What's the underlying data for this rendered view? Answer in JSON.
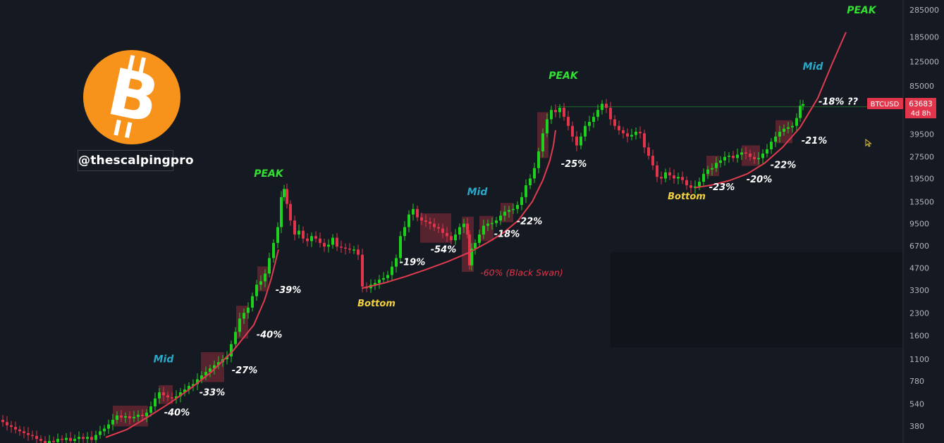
{
  "brand": {
    "handle": "@thescalpingpro",
    "logo_symbol": "bitcoin-logo",
    "logo_color": "#f7931a"
  },
  "colors": {
    "background": "#151921",
    "up": "#1ed11e",
    "down": "#e0354a",
    "zone": "#a8303d",
    "curve": "#e03b4f",
    "peak": "#33e033",
    "mid": "#2aa9c9",
    "bottom": "#f2d13d",
    "pct": "#ffffff",
    "black_swan": "#e0354a"
  },
  "chart_data": {
    "type": "line",
    "symbol": "BTCUSD",
    "title": "",
    "xlabel": "",
    "ylabel": "",
    "y_scale": "log",
    "grid": false,
    "y_ticks": [
      380,
      540,
      780,
      1100,
      1600,
      2300,
      3300,
      4700,
      6700,
      9500,
      13500,
      19500,
      27500,
      39500,
      55000,
      85000,
      125000,
      185000,
      285000
    ],
    "last_price": {
      "symbol": "BTCUSD",
      "value": "63683",
      "countdown": "4d 8h"
    },
    "series": [
      {
        "name": "",
        "points": [
          [
            0,
            420
          ],
          [
            6,
            405
          ],
          [
            12,
            385
          ],
          [
            18,
            375
          ],
          [
            24,
            360
          ],
          [
            30,
            350
          ],
          [
            36,
            340
          ],
          [
            42,
            330
          ],
          [
            48,
            325
          ],
          [
            54,
            310
          ],
          [
            60,
            300
          ],
          [
            66,
            290
          ],
          [
            72,
            300
          ],
          [
            78,
            295
          ],
          [
            84,
            310
          ],
          [
            90,
            305
          ],
          [
            96,
            315
          ],
          [
            102,
            300
          ],
          [
            108,
            310
          ],
          [
            114,
            320
          ],
          [
            120,
            310
          ],
          [
            126,
            320
          ],
          [
            132,
            305
          ],
          [
            138,
            330
          ],
          [
            144,
            350
          ],
          [
            150,
            365
          ],
          [
            156,
            390
          ],
          [
            162,
            420
          ],
          [
            168,
            450
          ],
          [
            174,
            435
          ],
          [
            180,
            445
          ],
          [
            186,
            430
          ],
          [
            192,
            440
          ],
          [
            198,
            455
          ],
          [
            204,
            445
          ],
          [
            210,
            470
          ],
          [
            216,
            520
          ],
          [
            222,
            590
          ],
          [
            228,
            650
          ],
          [
            234,
            620
          ],
          [
            240,
            600
          ],
          [
            246,
            590
          ],
          [
            252,
            610
          ],
          [
            258,
            650
          ],
          [
            264,
            680
          ],
          [
            270,
            720
          ],
          [
            276,
            740
          ],
          [
            282,
            800
          ],
          [
            288,
            850
          ],
          [
            294,
            900
          ],
          [
            300,
            950
          ],
          [
            306,
            1000
          ],
          [
            312,
            1050
          ],
          [
            318,
            1100
          ],
          [
            324,
            1150
          ],
          [
            330,
            1400
          ],
          [
            336,
            1700
          ],
          [
            342,
            2100
          ],
          [
            348,
            2300
          ],
          [
            354,
            2500
          ],
          [
            360,
            3000
          ],
          [
            366,
            3600
          ],
          [
            372,
            3800
          ],
          [
            378,
            4300
          ],
          [
            384,
            5500
          ],
          [
            390,
            7000
          ],
          [
            396,
            9000
          ],
          [
            400,
            14500
          ],
          [
            404,
            16500
          ],
          [
            408,
            13000
          ],
          [
            414,
            10000
          ],
          [
            420,
            8000
          ],
          [
            426,
            8500
          ],
          [
            432,
            7500
          ],
          [
            438,
            7200
          ],
          [
            444,
            7800
          ],
          [
            450,
            7500
          ],
          [
            456,
            7000
          ],
          [
            462,
            6600
          ],
          [
            468,
            6800
          ],
          [
            474,
            7600
          ],
          [
            480,
            6600
          ],
          [
            486,
            6500
          ],
          [
            492,
            6400
          ],
          [
            498,
            6300
          ],
          [
            504,
            6300
          ],
          [
            510,
            5800
          ],
          [
            516,
            3500
          ],
          [
            522,
            3400
          ],
          [
            528,
            3600
          ],
          [
            534,
            3700
          ],
          [
            540,
            3900
          ],
          [
            546,
            4000
          ],
          [
            552,
            4200
          ],
          [
            558,
            4800
          ],
          [
            564,
            5500
          ],
          [
            570,
            7800
          ],
          [
            576,
            9000
          ],
          [
            582,
            11000
          ],
          [
            588,
            12000
          ],
          [
            594,
            10500
          ],
          [
            600,
            10000
          ],
          [
            606,
            9800
          ],
          [
            612,
            9500
          ],
          [
            618,
            9000
          ],
          [
            624,
            8800
          ],
          [
            630,
            8200
          ],
          [
            636,
            7800
          ],
          [
            642,
            7300
          ],
          [
            648,
            8000
          ],
          [
            654,
            9000
          ],
          [
            660,
            9500
          ],
          [
            664,
            8000
          ],
          [
            666,
            4900
          ],
          [
            670,
            6400
          ],
          [
            676,
            7000
          ],
          [
            682,
            8000
          ],
          [
            688,
            9200
          ],
          [
            694,
            9500
          ],
          [
            700,
            9600
          ],
          [
            706,
            10000
          ],
          [
            712,
            10800
          ],
          [
            718,
            11500
          ],
          [
            724,
            11800
          ],
          [
            730,
            12000
          ],
          [
            736,
            12800
          ],
          [
            742,
            14500
          ],
          [
            748,
            17500
          ],
          [
            754,
            19500
          ],
          [
            760,
            23000
          ],
          [
            766,
            30000
          ],
          [
            772,
            40000
          ],
          [
            778,
            50000
          ],
          [
            784,
            58000
          ],
          [
            790,
            56000
          ],
          [
            796,
            60000
          ],
          [
            802,
            52000
          ],
          [
            808,
            45000
          ],
          [
            814,
            38000
          ],
          [
            820,
            33000
          ],
          [
            826,
            38000
          ],
          [
            832,
            45000
          ],
          [
            838,
            48000
          ],
          [
            844,
            52000
          ],
          [
            850,
            58000
          ],
          [
            856,
            64000
          ],
          [
            862,
            60000
          ],
          [
            868,
            50000
          ],
          [
            874,
            45000
          ],
          [
            880,
            42000
          ],
          [
            886,
            40000
          ],
          [
            892,
            38000
          ],
          [
            898,
            39000
          ],
          [
            904,
            41000
          ],
          [
            910,
            40000
          ],
          [
            916,
            32000
          ],
          [
            922,
            28000
          ],
          [
            928,
            24000
          ],
          [
            934,
            20000
          ],
          [
            940,
            19500
          ],
          [
            946,
            21500
          ],
          [
            952,
            20500
          ],
          [
            958,
            19500
          ],
          [
            964,
            20000
          ],
          [
            970,
            19000
          ],
          [
            976,
            17500
          ],
          [
            982,
            16800
          ],
          [
            988,
            17200
          ],
          [
            994,
            18500
          ],
          [
            1000,
            21000
          ],
          [
            1006,
            22500
          ],
          [
            1012,
            23000
          ],
          [
            1018,
            25000
          ],
          [
            1024,
            26000
          ],
          [
            1030,
            27500
          ],
          [
            1036,
            28000
          ],
          [
            1042,
            27000
          ],
          [
            1048,
            28500
          ],
          [
            1054,
            29500
          ],
          [
            1060,
            29000
          ],
          [
            1066,
            27500
          ],
          [
            1072,
            26500
          ],
          [
            1078,
            27000
          ],
          [
            1084,
            29000
          ],
          [
            1090,
            31000
          ],
          [
            1096,
            35000
          ],
          [
            1102,
            38000
          ],
          [
            1108,
            41000
          ],
          [
            1114,
            43000
          ],
          [
            1120,
            44000
          ],
          [
            1126,
            45000
          ],
          [
            1132,
            51000
          ],
          [
            1136,
            62000
          ],
          [
            1140,
            63683
          ]
        ]
      }
    ],
    "trend_curves": [
      {
        "points": [
          [
            150,
            318
          ],
          [
            180,
            360
          ],
          [
            210,
            440
          ],
          [
            240,
            545
          ],
          [
            270,
            690
          ],
          [
            300,
            900
          ],
          [
            330,
            1250
          ],
          [
            360,
            1900
          ],
          [
            375,
            2800
          ],
          [
            385,
            4000
          ],
          [
            395,
            6300
          ]
        ]
      },
      {
        "points": [
          [
            513,
            3400
          ],
          [
            545,
            3700
          ],
          [
            575,
            4100
          ],
          [
            605,
            4600
          ],
          [
            635,
            5200
          ],
          [
            665,
            6000
          ],
          [
            695,
            7200
          ],
          [
            715,
            8300
          ],
          [
            735,
            10000
          ],
          [
            755,
            13500
          ],
          [
            770,
            19000
          ],
          [
            780,
            26000
          ],
          [
            785,
            33000
          ],
          [
            788,
            42000
          ]
        ]
      },
      {
        "points": [
          [
            985,
            16800
          ],
          [
            1010,
            17600
          ],
          [
            1035,
            18900
          ],
          [
            1060,
            21000
          ],
          [
            1085,
            25000
          ],
          [
            1110,
            32000
          ],
          [
            1135,
            44000
          ],
          [
            1160,
            70000
          ],
          [
            1180,
            120000
          ],
          [
            1200,
            200000
          ]
        ]
      }
    ],
    "annotations": [
      {
        "text": "PEAK",
        "x": 381,
        "y": 20000,
        "kind": "peak"
      },
      {
        "text": "PEAK",
        "x": 799,
        "y": 95000,
        "kind": "peak"
      },
      {
        "text": "PEAK",
        "x": 1222,
        "y": 270000,
        "kind": "peak"
      },
      {
        "text": "Mid",
        "x": 232,
        "y": 1050,
        "kind": "mid"
      },
      {
        "text": "Mid",
        "x": 677,
        "y": 15000,
        "kind": "mid"
      },
      {
        "text": "Mid",
        "x": 1153,
        "y": 110000,
        "kind": "mid"
      },
      {
        "text": "Bottom",
        "x": 534,
        "y": 2550,
        "kind": "bottom"
      },
      {
        "text": "Bottom",
        "x": 974,
        "y": 14000,
        "kind": "bottom"
      },
      {
        "text": "-40%",
        "x": 251,
        "y": 450,
        "kind": "pct"
      },
      {
        "text": "-33%",
        "x": 301,
        "y": 620,
        "kind": "pct"
      },
      {
        "text": "-27%",
        "x": 347,
        "y": 880,
        "kind": "pct"
      },
      {
        "text": "-40%",
        "x": 382,
        "y": 1550,
        "kind": "pct"
      },
      {
        "text": "-39%",
        "x": 409,
        "y": 3150,
        "kind": "pct"
      },
      {
        "text": "-19%",
        "x": 585,
        "y": 4900,
        "kind": "pct"
      },
      {
        "text": "-54%",
        "x": 629,
        "y": 6000,
        "kind": "pct"
      },
      {
        "text": "-18%",
        "x": 719,
        "y": 7700,
        "kind": "pct"
      },
      {
        "text": "-22%",
        "x": 751,
        "y": 9400,
        "kind": "pct"
      },
      {
        "text": "-25%",
        "x": 814,
        "y": 23500,
        "kind": "pct"
      },
      {
        "text": "-23%",
        "x": 1024,
        "y": 16200,
        "kind": "pct"
      },
      {
        "text": "-20%",
        "x": 1077,
        "y": 18300,
        "kind": "pct"
      },
      {
        "text": "-22%",
        "x": 1111,
        "y": 23000,
        "kind": "pct"
      },
      {
        "text": "-21%",
        "x": 1155,
        "y": 34000,
        "kind": "pct"
      },
      {
        "text": "-18% ??",
        "x": 1189,
        "y": 63000,
        "kind": "pct"
      },
      {
        "text": "-60% (Black Swan)",
        "x": 740,
        "y": 4150,
        "kind": "swan"
      }
    ],
    "prev_peak_level": 61000
  }
}
